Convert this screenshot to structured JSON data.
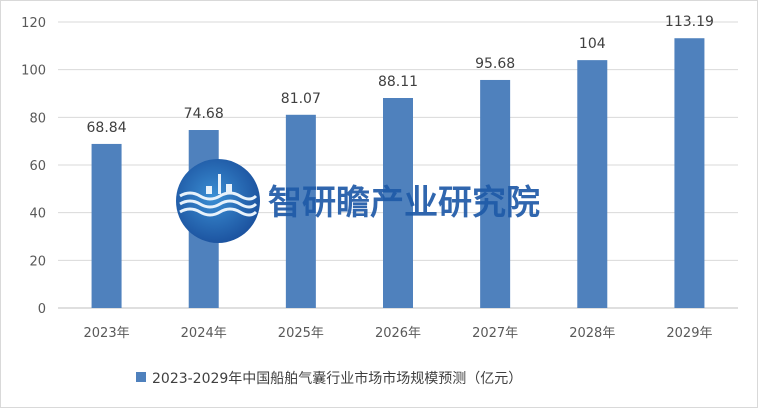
{
  "chart_data": {
    "type": "bar",
    "title": "",
    "categories": [
      "2023年",
      "2024年",
      "2025年",
      "2026年",
      "2027年",
      "2028年",
      "2029年"
    ],
    "series": [
      {
        "name": "2023-2029年中国船舶气囊行业市场市场规模预测（亿元）",
        "values": [
          68.84,
          74.68,
          81.07,
          88.11,
          95.68,
          104,
          113.19
        ],
        "labels": [
          "68.84",
          "74.68",
          "81.07",
          "88.11",
          "95.68",
          "104",
          "113.19"
        ],
        "color": "#4f81bd"
      }
    ],
    "ylim": [
      0,
      120
    ],
    "yticks": [
      0,
      20,
      40,
      60,
      80,
      100,
      120
    ],
    "grid": true,
    "legend": "bottom",
    "xlabel": "",
    "ylabel": ""
  },
  "watermark": {
    "text": "智研瞻产业研究院",
    "color": "#1f5aa8"
  }
}
